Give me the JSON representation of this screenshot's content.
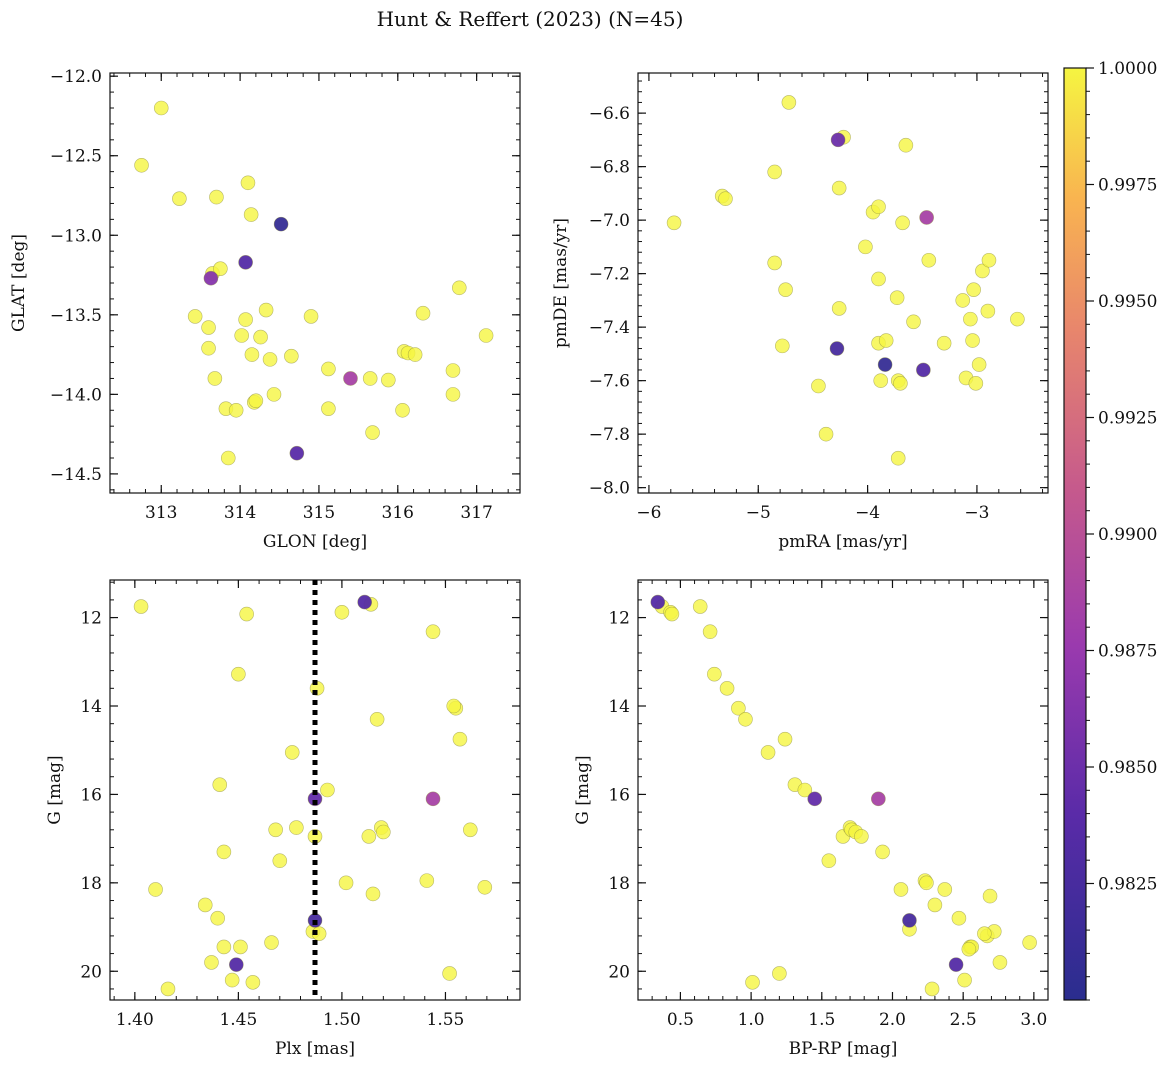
{
  "figure": {
    "suptitle": "Hunt & Reffert (2023) (N=45)"
  },
  "colorbar": {
    "vmin": 0.98,
    "vmax": 1.0,
    "ticks": [
      0.9825,
      0.985,
      0.9875,
      0.99,
      0.9925,
      0.995,
      0.9975,
      1.0
    ],
    "tick_labels": [
      "0.9825",
      "0.9850",
      "0.9875",
      "0.9900",
      "0.9925",
      "0.9950",
      "0.9975",
      "1.0000"
    ],
    "colormap": "plasma"
  },
  "chart_data": [
    {
      "type": "scatter",
      "title": "",
      "xlabel": "GLON [deg]",
      "ylabel": "GLAT [deg]",
      "xlim": [
        312.35,
        317.55
      ],
      "ylim": [
        -14.62,
        -11.98
      ],
      "y_inverted": false,
      "xticks": [
        313,
        314,
        315,
        316,
        317
      ],
      "xtick_labels": [
        "313",
        "314",
        "315",
        "316",
        "317"
      ],
      "yticks": [
        -12.0,
        -12.5,
        -13.0,
        -13.5,
        -14.0,
        -14.5
      ],
      "ytick_labels": [
        "−12.0",
        "−12.5",
        "−13.0",
        "−13.5",
        "−14.0",
        "−14.5"
      ],
      "points": [
        {
          "x": 312.75,
          "y": -12.56,
          "c": 1.0
        },
        {
          "x": 313.0,
          "y": -12.2,
          "c": 1.0
        },
        {
          "x": 313.23,
          "y": -12.77,
          "c": 1.0
        },
        {
          "x": 313.43,
          "y": -13.51,
          "c": 1.0
        },
        {
          "x": 313.6,
          "y": -13.58,
          "c": 1.0
        },
        {
          "x": 313.6,
          "y": -13.71,
          "c": 1.0
        },
        {
          "x": 313.65,
          "y": -13.24,
          "c": 1.0
        },
        {
          "x": 313.63,
          "y": -13.27,
          "c": 0.9865
        },
        {
          "x": 313.7,
          "y": -12.76,
          "c": 1.0
        },
        {
          "x": 313.68,
          "y": -13.9,
          "c": 1.0
        },
        {
          "x": 313.75,
          "y": -13.21,
          "c": 1.0
        },
        {
          "x": 313.82,
          "y": -14.09,
          "c": 1.0
        },
        {
          "x": 313.85,
          "y": -14.4,
          "c": 1.0
        },
        {
          "x": 313.95,
          "y": -14.1,
          "c": 1.0
        },
        {
          "x": 314.02,
          "y": -13.63,
          "c": 1.0
        },
        {
          "x": 314.07,
          "y": -13.53,
          "c": 1.0
        },
        {
          "x": 314.07,
          "y": -13.17,
          "c": 0.9835
        },
        {
          "x": 314.1,
          "y": -12.67,
          "c": 1.0
        },
        {
          "x": 314.14,
          "y": -12.87,
          "c": 1.0
        },
        {
          "x": 314.15,
          "y": -13.75,
          "c": 1.0
        },
        {
          "x": 314.18,
          "y": -14.05,
          "c": 1.0
        },
        {
          "x": 314.2,
          "y": -14.04,
          "c": 1.0
        },
        {
          "x": 314.26,
          "y": -13.64,
          "c": 1.0
        },
        {
          "x": 314.33,
          "y": -13.47,
          "c": 1.0
        },
        {
          "x": 314.38,
          "y": -13.78,
          "c": 1.0
        },
        {
          "x": 314.43,
          "y": -14.0,
          "c": 1.0
        },
        {
          "x": 314.52,
          "y": -12.93,
          "c": 0.981
        },
        {
          "x": 314.65,
          "y": -13.76,
          "c": 1.0
        },
        {
          "x": 314.72,
          "y": -14.37,
          "c": 0.984
        },
        {
          "x": 314.9,
          "y": -13.51,
          "c": 1.0
        },
        {
          "x": 315.12,
          "y": -13.84,
          "c": 1.0
        },
        {
          "x": 315.12,
          "y": -14.09,
          "c": 1.0
        },
        {
          "x": 315.4,
          "y": -13.9,
          "c": 0.9885
        },
        {
          "x": 315.65,
          "y": -13.9,
          "c": 1.0
        },
        {
          "x": 315.68,
          "y": -14.24,
          "c": 1.0
        },
        {
          "x": 315.88,
          "y": -13.91,
          "c": 1.0
        },
        {
          "x": 316.06,
          "y": -14.1,
          "c": 1.0
        },
        {
          "x": 316.08,
          "y": -13.73,
          "c": 1.0
        },
        {
          "x": 316.13,
          "y": -13.74,
          "c": 1.0
        },
        {
          "x": 316.22,
          "y": -13.75,
          "c": 1.0
        },
        {
          "x": 316.32,
          "y": -13.49,
          "c": 1.0
        },
        {
          "x": 316.7,
          "y": -13.85,
          "c": 1.0
        },
        {
          "x": 316.7,
          "y": -14.0,
          "c": 1.0
        },
        {
          "x": 316.78,
          "y": -13.33,
          "c": 1.0
        },
        {
          "x": 317.12,
          "y": -13.63,
          "c": 1.0
        }
      ]
    },
    {
      "type": "scatter",
      "title": "",
      "xlabel": "pmRA [mas/yr]",
      "ylabel": "pmDE [mas/yr]",
      "xlim": [
        -6.1,
        -2.35
      ],
      "ylim": [
        -8.02,
        -6.45
      ],
      "y_inverted": false,
      "xticks": [
        -6,
        -5,
        -4,
        -3
      ],
      "xtick_labels": [
        "−6",
        "−5",
        "−4",
        "−3"
      ],
      "yticks": [
        -6.6,
        -6.8,
        -7.0,
        -7.2,
        -7.4,
        -7.6,
        -7.8,
        -8.0
      ],
      "ytick_labels": [
        "−6.6",
        "−6.8",
        "−7.0",
        "−7.2",
        "−7.4",
        "−7.6",
        "−7.8",
        "−8.0"
      ],
      "points": [
        {
          "x": -5.77,
          "y": -7.01,
          "c": 1.0
        },
        {
          "x": -5.33,
          "y": -6.91,
          "c": 1.0
        },
        {
          "x": -5.3,
          "y": -6.92,
          "c": 1.0
        },
        {
          "x": -4.85,
          "y": -6.82,
          "c": 1.0
        },
        {
          "x": -4.85,
          "y": -7.16,
          "c": 1.0
        },
        {
          "x": -4.78,
          "y": -7.47,
          "c": 1.0
        },
        {
          "x": -4.75,
          "y": -7.26,
          "c": 1.0
        },
        {
          "x": -4.72,
          "y": -6.56,
          "c": 1.0
        },
        {
          "x": -4.45,
          "y": -7.62,
          "c": 1.0
        },
        {
          "x": -4.38,
          "y": -7.8,
          "c": 1.0
        },
        {
          "x": -4.28,
          "y": -7.48,
          "c": 0.9825
        },
        {
          "x": -4.27,
          "y": -6.7,
          "c": 0.985
        },
        {
          "x": -4.26,
          "y": -6.88,
          "c": 1.0
        },
        {
          "x": -4.26,
          "y": -7.33,
          "c": 1.0
        },
        {
          "x": -4.22,
          "y": -6.69,
          "c": 1.0
        },
        {
          "x": -4.02,
          "y": -7.1,
          "c": 1.0
        },
        {
          "x": -3.95,
          "y": -6.97,
          "c": 1.0
        },
        {
          "x": -3.9,
          "y": -6.95,
          "c": 1.0
        },
        {
          "x": -3.9,
          "y": -7.22,
          "c": 1.0
        },
        {
          "x": -3.9,
          "y": -7.46,
          "c": 1.0
        },
        {
          "x": -3.88,
          "y": -7.6,
          "c": 1.0
        },
        {
          "x": -3.84,
          "y": -7.54,
          "c": 0.981
        },
        {
          "x": -3.83,
          "y": -7.45,
          "c": 1.0
        },
        {
          "x": -3.73,
          "y": -7.29,
          "c": 1.0
        },
        {
          "x": -3.72,
          "y": -7.6,
          "c": 1.0
        },
        {
          "x": -3.72,
          "y": -7.89,
          "c": 1.0
        },
        {
          "x": -3.7,
          "y": -7.61,
          "c": 1.0
        },
        {
          "x": -3.68,
          "y": -7.01,
          "c": 1.0
        },
        {
          "x": -3.65,
          "y": -6.72,
          "c": 1.0
        },
        {
          "x": -3.58,
          "y": -7.38,
          "c": 1.0
        },
        {
          "x": -3.49,
          "y": -7.56,
          "c": 0.9835
        },
        {
          "x": -3.46,
          "y": -6.99,
          "c": 0.9885
        },
        {
          "x": -3.44,
          "y": -7.15,
          "c": 1.0
        },
        {
          "x": -3.3,
          "y": -7.46,
          "c": 1.0
        },
        {
          "x": -3.13,
          "y": -7.3,
          "c": 1.0
        },
        {
          "x": -3.1,
          "y": -7.59,
          "c": 1.0
        },
        {
          "x": -3.06,
          "y": -7.37,
          "c": 1.0
        },
        {
          "x": -3.04,
          "y": -7.45,
          "c": 1.0
        },
        {
          "x": -3.03,
          "y": -7.26,
          "c": 1.0
        },
        {
          "x": -3.01,
          "y": -7.61,
          "c": 1.0
        },
        {
          "x": -2.98,
          "y": -7.54,
          "c": 1.0
        },
        {
          "x": -2.95,
          "y": -7.19,
          "c": 1.0
        },
        {
          "x": -2.9,
          "y": -7.34,
          "c": 1.0
        },
        {
          "x": -2.89,
          "y": -7.15,
          "c": 1.0
        },
        {
          "x": -2.63,
          "y": -7.37,
          "c": 1.0
        }
      ]
    },
    {
      "type": "scatter",
      "title": "",
      "xlabel": "Plx [mas]",
      "ylabel": "G [mag]",
      "xlim": [
        1.388,
        1.586
      ],
      "ylim": [
        11.15,
        20.65
      ],
      "y_inverted": true,
      "xticks": [
        1.4,
        1.45,
        1.5,
        1.55
      ],
      "xtick_labels": [
        "1.40",
        "1.45",
        "1.50",
        "1.55"
      ],
      "yticks": [
        12,
        14,
        16,
        18,
        20
      ],
      "ytick_labels": [
        "12",
        "14",
        "16",
        "18",
        "20"
      ],
      "vline": {
        "x": 1.487,
        "style": "dotted",
        "color": "#000000"
      },
      "points": [
        {
          "x": 1.403,
          "y": 11.75,
          "c": 1.0
        },
        {
          "x": 1.41,
          "y": 18.15,
          "c": 1.0
        },
        {
          "x": 1.416,
          "y": 20.4,
          "c": 1.0
        },
        {
          "x": 1.434,
          "y": 18.5,
          "c": 1.0
        },
        {
          "x": 1.437,
          "y": 19.8,
          "c": 1.0
        },
        {
          "x": 1.44,
          "y": 18.8,
          "c": 1.0
        },
        {
          "x": 1.441,
          "y": 15.78,
          "c": 1.0
        },
        {
          "x": 1.443,
          "y": 17.3,
          "c": 1.0
        },
        {
          "x": 1.443,
          "y": 19.45,
          "c": 1.0
        },
        {
          "x": 1.447,
          "y": 20.2,
          "c": 1.0
        },
        {
          "x": 1.449,
          "y": 19.85,
          "c": 0.9835
        },
        {
          "x": 1.45,
          "y": 13.28,
          "c": 1.0
        },
        {
          "x": 1.451,
          "y": 19.45,
          "c": 1.0
        },
        {
          "x": 1.454,
          "y": 11.92,
          "c": 1.0
        },
        {
          "x": 1.457,
          "y": 20.25,
          "c": 1.0
        },
        {
          "x": 1.466,
          "y": 19.35,
          "c": 1.0
        },
        {
          "x": 1.468,
          "y": 16.8,
          "c": 1.0
        },
        {
          "x": 1.47,
          "y": 17.5,
          "c": 1.0
        },
        {
          "x": 1.476,
          "y": 15.05,
          "c": 1.0
        },
        {
          "x": 1.478,
          "y": 16.75,
          "c": 1.0
        },
        {
          "x": 1.486,
          "y": 19.1,
          "c": 1.0
        },
        {
          "x": 1.488,
          "y": 13.6,
          "c": 1.0
        },
        {
          "x": 1.487,
          "y": 16.1,
          "c": 0.9845
        },
        {
          "x": 1.487,
          "y": 16.95,
          "c": 1.0
        },
        {
          "x": 1.487,
          "y": 18.85,
          "c": 0.9825
        },
        {
          "x": 1.489,
          "y": 19.15,
          "c": 1.0
        },
        {
          "x": 1.493,
          "y": 15.9,
          "c": 1.0
        },
        {
          "x": 1.5,
          "y": 11.88,
          "c": 1.0
        },
        {
          "x": 1.502,
          "y": 18.0,
          "c": 1.0
        },
        {
          "x": 1.511,
          "y": 11.65,
          "c": 0.9835
        },
        {
          "x": 1.513,
          "y": 16.95,
          "c": 1.0
        },
        {
          "x": 1.514,
          "y": 11.7,
          "c": 1.0
        },
        {
          "x": 1.515,
          "y": 18.25,
          "c": 1.0
        },
        {
          "x": 1.517,
          "y": 14.3,
          "c": 1.0
        },
        {
          "x": 1.519,
          "y": 16.75,
          "c": 1.0
        },
        {
          "x": 1.52,
          "y": 16.85,
          "c": 1.0
        },
        {
          "x": 1.541,
          "y": 17.95,
          "c": 1.0
        },
        {
          "x": 1.544,
          "y": 12.32,
          "c": 1.0
        },
        {
          "x": 1.544,
          "y": 16.1,
          "c": 0.9885
        },
        {
          "x": 1.552,
          "y": 20.05,
          "c": 1.0
        },
        {
          "x": 1.555,
          "y": 14.05,
          "c": 1.0
        },
        {
          "x": 1.557,
          "y": 14.75,
          "c": 1.0
        },
        {
          "x": 1.562,
          "y": 16.8,
          "c": 1.0
        },
        {
          "x": 1.569,
          "y": 18.1,
          "c": 1.0
        },
        {
          "x": 1.554,
          "y": 14.0,
          "c": 1.0
        }
      ]
    },
    {
      "type": "scatter",
      "title": "",
      "xlabel": "BP-RP [mag]",
      "ylabel": "G [mag]",
      "xlim": [
        0.2,
        3.1
      ],
      "ylim": [
        11.15,
        20.65
      ],
      "y_inverted": true,
      "xticks": [
        0.5,
        1.0,
        1.5,
        2.0,
        2.5,
        3.0
      ],
      "xtick_labels": [
        "0.5",
        "1.0",
        "1.5",
        "2.0",
        "2.5",
        "3.0"
      ],
      "yticks": [
        12,
        14,
        16,
        18,
        20
      ],
      "ytick_labels": [
        "12",
        "14",
        "16",
        "18",
        "20"
      ],
      "points": [
        {
          "x": 0.34,
          "y": 11.65,
          "c": 0.9835
        },
        {
          "x": 0.37,
          "y": 11.75,
          "c": 1.0
        },
        {
          "x": 0.43,
          "y": 11.88,
          "c": 1.0
        },
        {
          "x": 0.44,
          "y": 11.92,
          "c": 1.0
        },
        {
          "x": 0.64,
          "y": 11.75,
          "c": 1.0
        },
        {
          "x": 0.71,
          "y": 12.32,
          "c": 1.0
        },
        {
          "x": 0.74,
          "y": 13.28,
          "c": 1.0
        },
        {
          "x": 0.83,
          "y": 13.6,
          "c": 1.0
        },
        {
          "x": 0.91,
          "y": 14.05,
          "c": 1.0
        },
        {
          "x": 0.96,
          "y": 14.3,
          "c": 1.0
        },
        {
          "x": 1.01,
          "y": 20.25,
          "c": 1.0
        },
        {
          "x": 1.12,
          "y": 15.05,
          "c": 1.0
        },
        {
          "x": 1.2,
          "y": 20.05,
          "c": 1.0
        },
        {
          "x": 1.24,
          "y": 14.75,
          "c": 1.0
        },
        {
          "x": 1.31,
          "y": 15.78,
          "c": 1.0
        },
        {
          "x": 1.38,
          "y": 15.9,
          "c": 1.0
        },
        {
          "x": 1.45,
          "y": 16.1,
          "c": 0.9845
        },
        {
          "x": 1.55,
          "y": 17.5,
          "c": 1.0
        },
        {
          "x": 1.65,
          "y": 16.95,
          "c": 1.0
        },
        {
          "x": 1.7,
          "y": 16.75,
          "c": 1.0
        },
        {
          "x": 1.71,
          "y": 16.8,
          "c": 1.0
        },
        {
          "x": 1.74,
          "y": 16.85,
          "c": 1.0
        },
        {
          "x": 1.78,
          "y": 16.95,
          "c": 1.0
        },
        {
          "x": 1.9,
          "y": 16.1,
          "c": 0.9885
        },
        {
          "x": 1.93,
          "y": 17.3,
          "c": 1.0
        },
        {
          "x": 2.06,
          "y": 18.15,
          "c": 1.0
        },
        {
          "x": 2.12,
          "y": 18.85,
          "c": 0.9825
        },
        {
          "x": 2.12,
          "y": 19.05,
          "c": 1.0
        },
        {
          "x": 2.23,
          "y": 17.95,
          "c": 1.0
        },
        {
          "x": 2.24,
          "y": 18.0,
          "c": 1.0
        },
        {
          "x": 2.28,
          "y": 20.4,
          "c": 1.0
        },
        {
          "x": 2.3,
          "y": 18.5,
          "c": 1.0
        },
        {
          "x": 2.37,
          "y": 18.15,
          "c": 1.0
        },
        {
          "x": 2.45,
          "y": 19.85,
          "c": 0.9835
        },
        {
          "x": 2.47,
          "y": 18.8,
          "c": 1.0
        },
        {
          "x": 2.51,
          "y": 20.2,
          "c": 1.0
        },
        {
          "x": 2.55,
          "y": 19.45,
          "c": 1.0
        },
        {
          "x": 2.56,
          "y": 19.45,
          "c": 1.0
        },
        {
          "x": 2.67,
          "y": 19.2,
          "c": 1.0
        },
        {
          "x": 2.69,
          "y": 18.3,
          "c": 1.0
        },
        {
          "x": 2.72,
          "y": 19.1,
          "c": 1.0
        },
        {
          "x": 2.76,
          "y": 19.8,
          "c": 1.0
        },
        {
          "x": 2.97,
          "y": 19.35,
          "c": 1.0
        },
        {
          "x": 2.54,
          "y": 19.5,
          "c": 1.0
        },
        {
          "x": 2.65,
          "y": 19.15,
          "c": 1.0
        }
      ]
    }
  ]
}
